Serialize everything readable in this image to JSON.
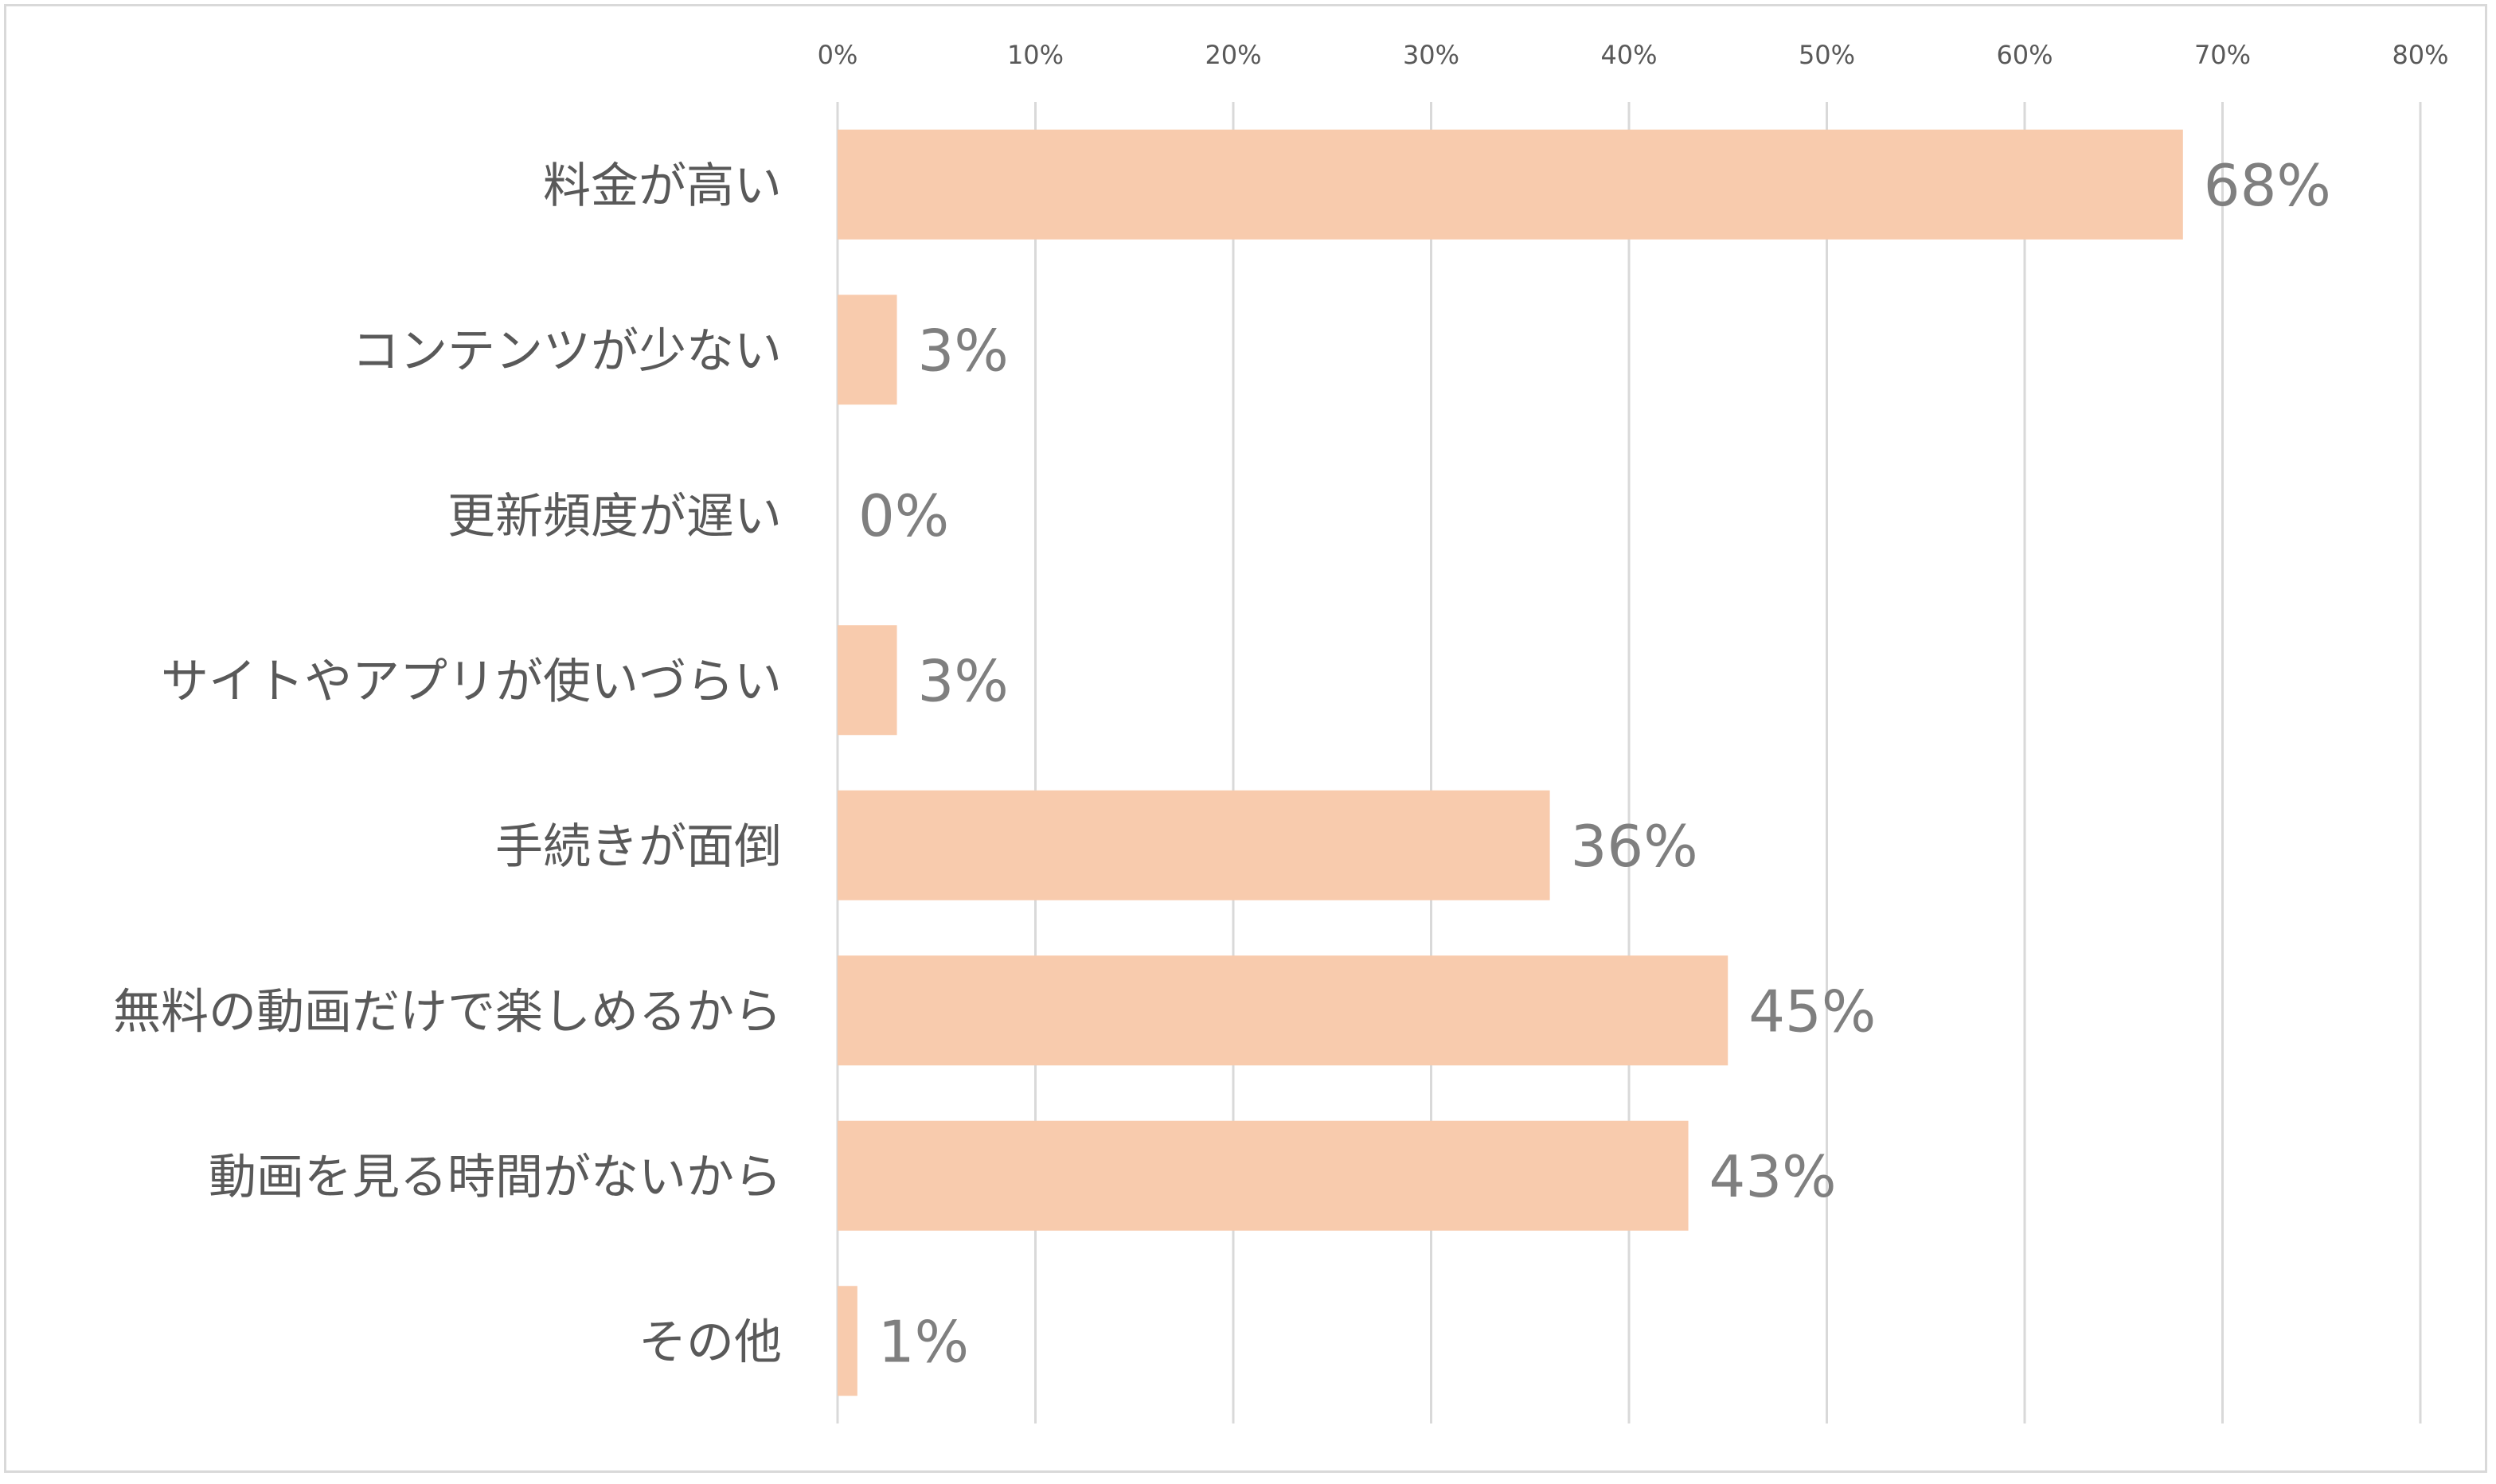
{
  "chart_data": {
    "type": "bar",
    "orientation": "horizontal",
    "categories": [
      "料金が高い",
      "コンテンツが少ない",
      "更新頻度が遅い",
      "サイトやアプリが使いづらい",
      "手続きが面倒",
      "無料の動画だけで楽しめるから",
      "動画を見る時間がないから",
      "その他"
    ],
    "values": [
      68,
      3,
      0,
      3,
      36,
      45,
      43,
      1
    ],
    "data_labels": [
      "68%",
      "3%",
      "0%",
      "3%",
      "36%",
      "45%",
      "43%",
      "1%"
    ],
    "x_ticks": [
      "0%",
      "10%",
      "20%",
      "30%",
      "40%",
      "50%",
      "60%",
      "70%",
      "80%"
    ],
    "xlim": [
      0,
      80
    ],
    "x_axis_position": "top",
    "grid": true,
    "legend": "none",
    "colors": {
      "bar": "#F8CBAD",
      "grid": "#D9D9D9",
      "category_text": "#595959",
      "value_text": "#7F7F7F",
      "tick_text": "#595959"
    }
  }
}
